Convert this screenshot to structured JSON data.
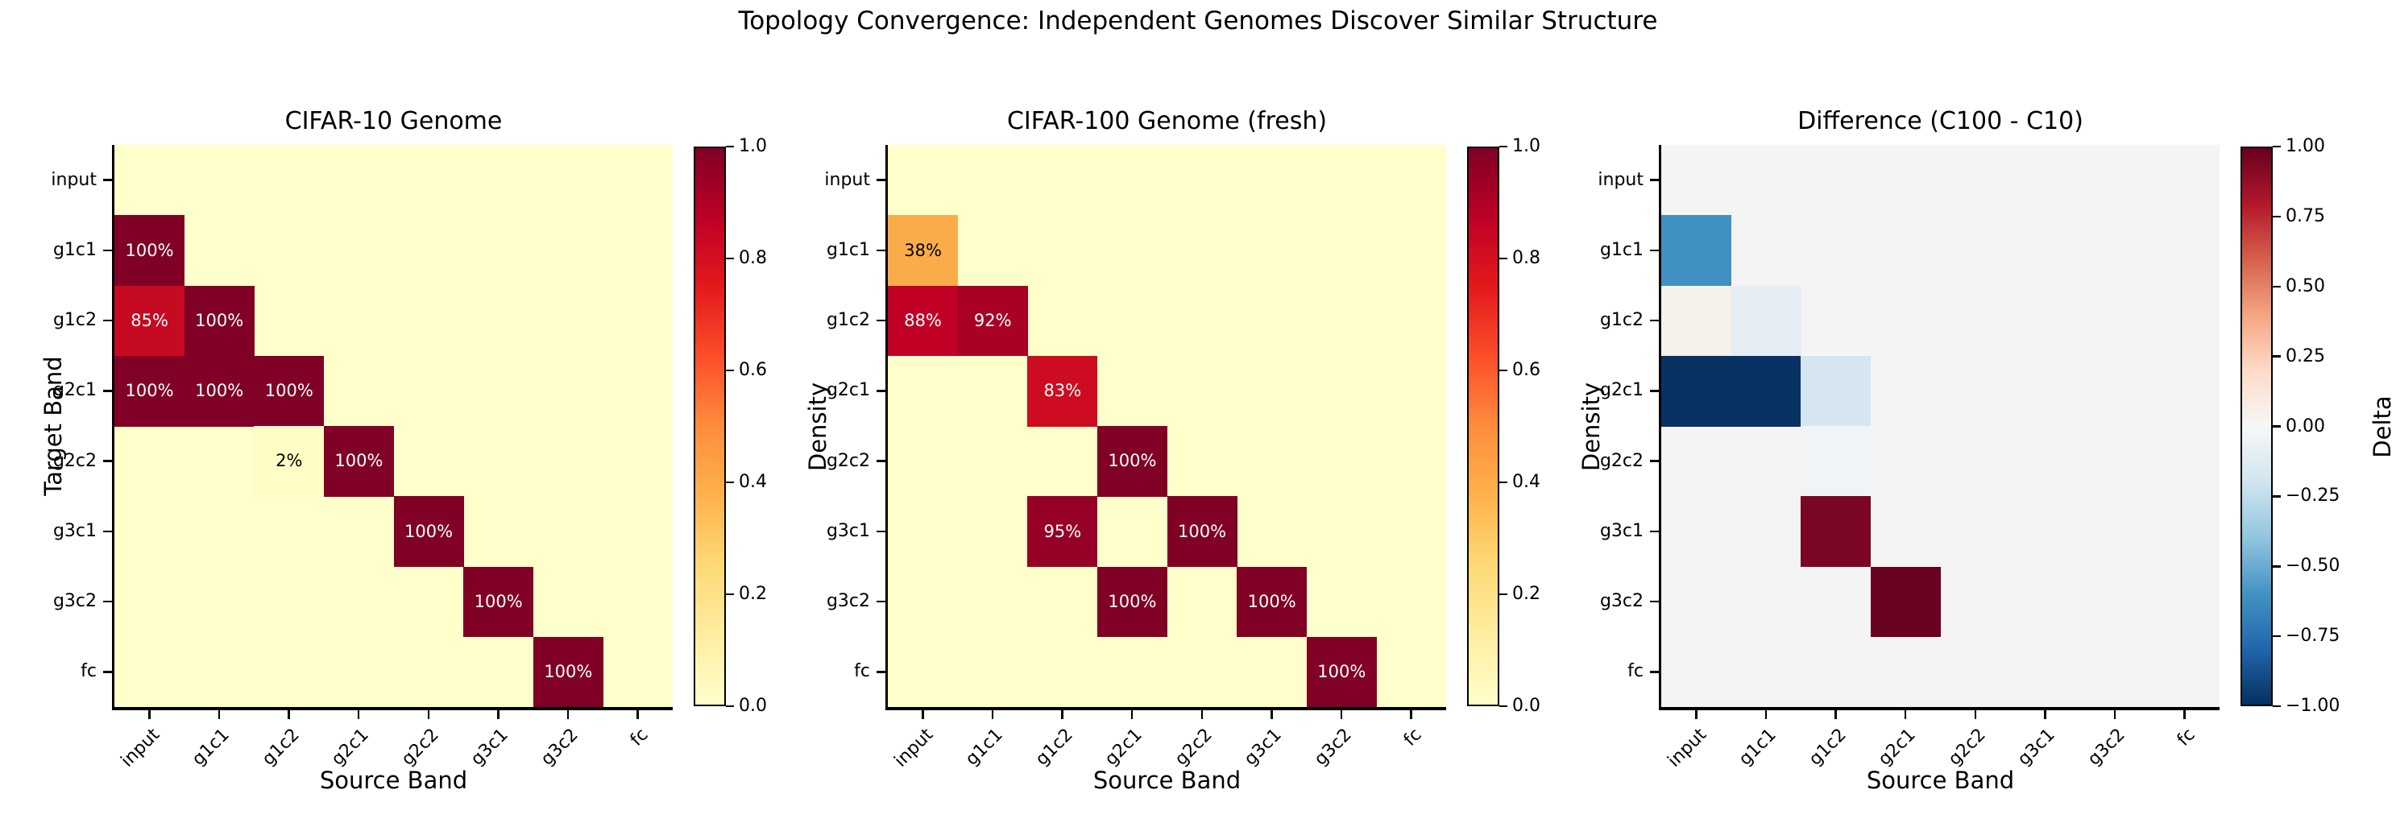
{
  "suptitle": "Topology Convergence: Independent Genomes Discover Similar Structure",
  "bands": [
    "input",
    "g1c1",
    "g1c2",
    "g2c1",
    "g2c2",
    "g3c1",
    "g3c2",
    "fc"
  ],
  "chart_data": [
    {
      "type": "heatmap",
      "title": "CIFAR-10 Genome",
      "x_label": "Source Band",
      "y_label": "Target Band",
      "x_categories": [
        "input",
        "g1c1",
        "g1c2",
        "g2c1",
        "g2c2",
        "g3c1",
        "g3c2",
        "fc"
      ],
      "y_categories": [
        "input",
        "g1c1",
        "g1c2",
        "g2c1",
        "g2c2",
        "g3c1",
        "g3c2",
        "fc"
      ],
      "colormap": "YlOrRd",
      "value_range": [
        0,
        1
      ],
      "default_value": 0,
      "zero_color": "#ffffcc",
      "cells": [
        {
          "target": "g1c1",
          "source": "input",
          "value": 1.0,
          "label": "100%",
          "color": "#800026",
          "text_color": "#ffffff"
        },
        {
          "target": "g1c2",
          "source": "input",
          "value": 0.85,
          "label": "85%",
          "color": "#c50a22",
          "text_color": "#ffffff"
        },
        {
          "target": "g1c2",
          "source": "g1c1",
          "value": 1.0,
          "label": "100%",
          "color": "#800026",
          "text_color": "#ffffff"
        },
        {
          "target": "g2c1",
          "source": "input",
          "value": 1.0,
          "label": "100%",
          "color": "#800026",
          "text_color": "#ffffff"
        },
        {
          "target": "g2c1",
          "source": "g1c1",
          "value": 1.0,
          "label": "100%",
          "color": "#800026",
          "text_color": "#ffffff"
        },
        {
          "target": "g2c1",
          "source": "g1c2",
          "value": 1.0,
          "label": "100%",
          "color": "#800026",
          "text_color": "#ffffff"
        },
        {
          "target": "g2c2",
          "source": "g1c2",
          "value": 0.02,
          "label": "2%",
          "color": "#fffcc5",
          "text_color": "#000000"
        },
        {
          "target": "g2c2",
          "source": "g2c1",
          "value": 1.0,
          "label": "100%",
          "color": "#800026",
          "text_color": "#ffffff"
        },
        {
          "target": "g3c1",
          "source": "g2c2",
          "value": 1.0,
          "label": "100%",
          "color": "#800026",
          "text_color": "#ffffff"
        },
        {
          "target": "g3c2",
          "source": "g3c1",
          "value": 1.0,
          "label": "100%",
          "color": "#800026",
          "text_color": "#ffffff"
        },
        {
          "target": "fc",
          "source": "g3c2",
          "value": 1.0,
          "label": "100%",
          "color": "#800026",
          "text_color": "#ffffff"
        }
      ],
      "colorbar": {
        "label": "Density",
        "ticks": [
          {
            "value": 1.0,
            "label": "1.0"
          },
          {
            "value": 0.8,
            "label": "0.8"
          },
          {
            "value": 0.6,
            "label": "0.6"
          },
          {
            "value": 0.4,
            "label": "0.4"
          },
          {
            "value": 0.2,
            "label": "0.2"
          },
          {
            "value": 0.0,
            "label": "0.0"
          }
        ],
        "gradient_bottom_to_top": [
          "#ffffcc",
          "#ffeda0",
          "#fed976",
          "#feb24c",
          "#fd8d3c",
          "#fc4e2a",
          "#e31a1c",
          "#bd0026",
          "#800026"
        ]
      }
    },
    {
      "type": "heatmap",
      "title": "CIFAR-100 Genome (fresh)",
      "x_label": "Source Band",
      "y_label": null,
      "x_categories": [
        "input",
        "g1c1",
        "g1c2",
        "g2c1",
        "g2c2",
        "g3c1",
        "g3c2",
        "fc"
      ],
      "y_categories": [
        "input",
        "g1c1",
        "g1c2",
        "g2c1",
        "g2c2",
        "g3c1",
        "g3c2",
        "fc"
      ],
      "colormap": "YlOrRd",
      "value_range": [
        0,
        1
      ],
      "default_value": 0,
      "zero_color": "#ffffcc",
      "cells": [
        {
          "target": "g1c1",
          "source": "input",
          "value": 0.38,
          "label": "38%",
          "color": "#fbac4a",
          "text_color": "#000000"
        },
        {
          "target": "g1c2",
          "source": "input",
          "value": 0.88,
          "label": "88%",
          "color": "#c00125",
          "text_color": "#ffffff"
        },
        {
          "target": "g1c2",
          "source": "g1c1",
          "value": 0.92,
          "label": "92%",
          "color": "#a90026",
          "text_color": "#ffffff"
        },
        {
          "target": "g2c1",
          "source": "g1c2",
          "value": 0.83,
          "label": "83%",
          "color": "#cd0c21",
          "text_color": "#ffffff"
        },
        {
          "target": "g2c2",
          "source": "g2c1",
          "value": 1.0,
          "label": "100%",
          "color": "#800026",
          "text_color": "#ffffff"
        },
        {
          "target": "g3c1",
          "source": "g1c2",
          "value": 0.95,
          "label": "95%",
          "color": "#970026",
          "text_color": "#ffffff"
        },
        {
          "target": "g3c1",
          "source": "g2c2",
          "value": 1.0,
          "label": "100%",
          "color": "#800026",
          "text_color": "#ffffff"
        },
        {
          "target": "g3c2",
          "source": "g2c1",
          "value": 1.0,
          "label": "100%",
          "color": "#800026",
          "text_color": "#ffffff"
        },
        {
          "target": "g3c2",
          "source": "g3c1",
          "value": 1.0,
          "label": "100%",
          "color": "#800026",
          "text_color": "#ffffff"
        },
        {
          "target": "fc",
          "source": "g3c2",
          "value": 1.0,
          "label": "100%",
          "color": "#800026",
          "text_color": "#ffffff"
        }
      ],
      "colorbar": {
        "label": "Density",
        "ticks": [
          {
            "value": 1.0,
            "label": "1.0"
          },
          {
            "value": 0.8,
            "label": "0.8"
          },
          {
            "value": 0.6,
            "label": "0.6"
          },
          {
            "value": 0.4,
            "label": "0.4"
          },
          {
            "value": 0.2,
            "label": "0.2"
          },
          {
            "value": 0.0,
            "label": "0.0"
          }
        ],
        "gradient_bottom_to_top": [
          "#ffffcc",
          "#ffeda0",
          "#fed976",
          "#feb24c",
          "#fd8d3c",
          "#fc4e2a",
          "#e31a1c",
          "#bd0026",
          "#800026"
        ]
      }
    },
    {
      "type": "heatmap",
      "title": "Difference (C100 - C10)",
      "x_label": "Source Band",
      "y_label": null,
      "x_categories": [
        "input",
        "g1c1",
        "g1c2",
        "g2c1",
        "g2c2",
        "g3c1",
        "g3c2",
        "fc"
      ],
      "y_categories": [
        "input",
        "g1c1",
        "g1c2",
        "g2c1",
        "g2c2",
        "g3c1",
        "g3c2",
        "fc"
      ],
      "colormap": "RdBu_r",
      "value_range": [
        -1,
        1
      ],
      "default_value": 0,
      "zero_color": "#f5f4f4",
      "cells": [
        {
          "target": "g1c1",
          "source": "input",
          "value": -0.62,
          "label": null,
          "color": "#4190c2",
          "text_color": null
        },
        {
          "target": "g1c2",
          "source": "input",
          "value": 0.03,
          "label": null,
          "color": "#f7f1ec",
          "text_color": null
        },
        {
          "target": "g1c2",
          "source": "g1c1",
          "value": -0.08,
          "label": null,
          "color": "#e6eef5",
          "text_color": null
        },
        {
          "target": "g2c1",
          "source": "input",
          "value": -1.0,
          "label": null,
          "color": "#073263",
          "text_color": null
        },
        {
          "target": "g2c1",
          "source": "g1c1",
          "value": -1.0,
          "label": null,
          "color": "#073263",
          "text_color": null
        },
        {
          "target": "g2c1",
          "source": "g1c2",
          "value": -0.17,
          "label": null,
          "color": "#d6e6f0",
          "text_color": null
        },
        {
          "target": "g2c2",
          "source": "g1c2",
          "value": -0.02,
          "label": null,
          "color": "#f1f4f7",
          "text_color": null
        },
        {
          "target": "g3c1",
          "source": "g1c2",
          "value": 0.95,
          "label": null,
          "color": "#7a0623",
          "text_color": null
        },
        {
          "target": "g3c2",
          "source": "g2c1",
          "value": 1.0,
          "label": null,
          "color": "#690120",
          "text_color": null
        }
      ],
      "colorbar": {
        "label": "Delta",
        "ticks": [
          {
            "value": 1.0,
            "label": "1.00"
          },
          {
            "value": 0.75,
            "label": "0.75"
          },
          {
            "value": 0.5,
            "label": "0.50"
          },
          {
            "value": 0.25,
            "label": "0.25"
          },
          {
            "value": 0.0,
            "label": "0.00"
          },
          {
            "value": -0.25,
            "label": "−0.25"
          },
          {
            "value": -0.5,
            "label": "−0.50"
          },
          {
            "value": -0.75,
            "label": "−0.75"
          },
          {
            "value": -1.0,
            "label": "−1.00"
          }
        ],
        "gradient_bottom_to_top": [
          "#053061",
          "#2166ac",
          "#4393c3",
          "#92c5de",
          "#d1e5f0",
          "#f7f7f7",
          "#fddbc7",
          "#f4a582",
          "#d6604d",
          "#b2182b",
          "#67001f"
        ]
      }
    }
  ]
}
